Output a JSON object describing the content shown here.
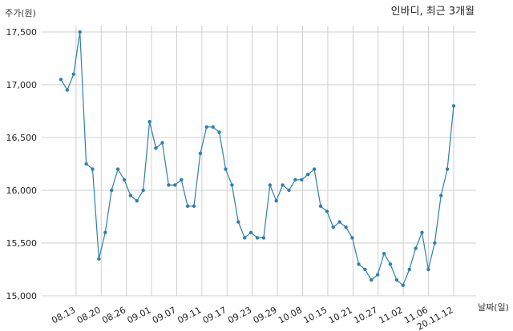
{
  "chart_data": {
    "type": "line",
    "title": "인바디, 최근 3개월",
    "ylabel": "주가(원)",
    "xlabel": "날짜(일)",
    "ylim": [
      15000,
      17500
    ],
    "yticks": [
      15000,
      15500,
      16000,
      16500,
      17000,
      17500
    ],
    "ytick_labels": [
      "15,000",
      "15,500",
      "16,000",
      "16,500",
      "17,000",
      "17,500"
    ],
    "xtick_labels": [
      "08.13",
      "08.20",
      "08.26",
      "09.01",
      "09.07",
      "09.11",
      "09.17",
      "09.23",
      "09.29",
      "10.08",
      "10.15",
      "10.21",
      "10.27",
      "11.02",
      "11.06",
      "20.11.12"
    ],
    "xtick_index": [
      3,
      8,
      13,
      18,
      23,
      28,
      33,
      38,
      43,
      48,
      53,
      58,
      63,
      68,
      73,
      78
    ],
    "grid": true,
    "line_color": "#2e7fb0",
    "series": [
      {
        "values": [
          17050,
          16950,
          17100,
          17500,
          16250,
          16200,
          15350,
          15600,
          16000,
          16200,
          16100,
          15950,
          15900,
          16000,
          16650,
          16400,
          16450,
          16050,
          16050,
          16100,
          15850,
          15850,
          16350,
          16600,
          16600,
          16550,
          16200,
          16050,
          15700,
          15550,
          15600,
          15550,
          15550,
          16050,
          15900,
          16050,
          16000,
          16100,
          16100,
          16150,
          16200,
          15850,
          15800,
          15650,
          15700,
          15650,
          15550,
          15300,
          15250,
          15150,
          15200,
          15400,
          15300,
          15150,
          15100,
          15250,
          15450,
          15600,
          15250,
          15500,
          15950,
          16200,
          16800
        ]
      }
    ]
  }
}
